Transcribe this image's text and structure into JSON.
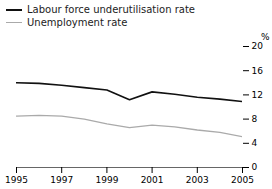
{
  "chart_data": {
    "type": "line",
    "ylabel": "%",
    "x": [
      1995,
      1996,
      1997,
      1998,
      1999,
      2000,
      2001,
      2002,
      2003,
      2004,
      2005
    ],
    "series": [
      {
        "name": "Labour force underutilisation rate",
        "color": "#111111",
        "values": [
          14.0,
          13.9,
          13.6,
          13.2,
          12.8,
          11.2,
          12.5,
          12.1,
          11.6,
          11.3,
          10.9
        ]
      },
      {
        "name": "Unemployment rate",
        "color": "#aaaaaa",
        "values": [
          8.5,
          8.6,
          8.5,
          8.0,
          7.2,
          6.6,
          7.0,
          6.7,
          6.2,
          5.8,
          5.1
        ]
      }
    ],
    "xlim": [
      1995,
      2005
    ],
    "xticks": [
      1995,
      1997,
      1999,
      2001,
      2003,
      2005
    ],
    "ylim": [
      0,
      20
    ],
    "yticks": [
      0,
      4,
      8,
      12,
      16,
      20
    ],
    "legend": "upper left"
  }
}
